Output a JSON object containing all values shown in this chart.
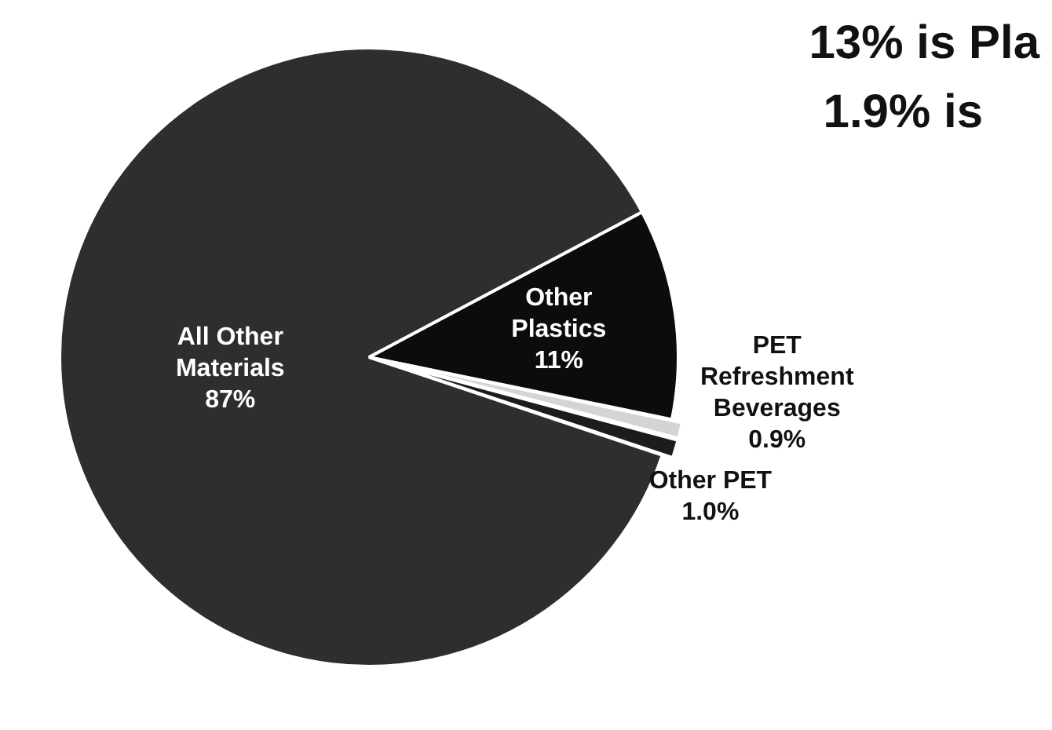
{
  "chart_data": {
    "type": "pie",
    "title": "13% is Pla",
    "subtitle": "1.9% is",
    "categories": [
      "Other Plastics",
      "PET Refreshment Beverages",
      "Other PET",
      "All Other Materials"
    ],
    "values": [
      11,
      0.9,
      1.0,
      87
    ],
    "value_labels": [
      "11%",
      "0.9%",
      "1.0%",
      "87%"
    ],
    "colors": [
      "#0c0c0c",
      "#d4d4d4",
      "#1c1c1c",
      "#2e2e2e"
    ],
    "legend": false
  }
}
